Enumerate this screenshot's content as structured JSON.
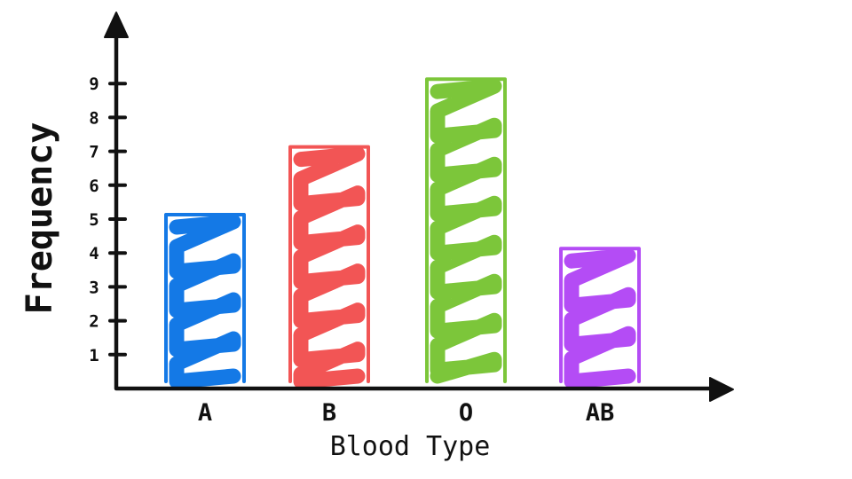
{
  "chart_data": {
    "type": "bar",
    "title": "",
    "xlabel": "Blood Type",
    "ylabel": "Frequency",
    "categories": [
      "A",
      "B",
      "O",
      "AB"
    ],
    "values": [
      5,
      7,
      9,
      4
    ],
    "colors": [
      "#1479e6",
      "#f25555",
      "#7cc63a",
      "#b44cf5"
    ],
    "yticks": [
      "1",
      "2",
      "3",
      "4",
      "5",
      "6",
      "7",
      "8",
      "9"
    ],
    "ylim": [
      0,
      10
    ],
    "grid": false,
    "legend": "none",
    "style": "hand-drawn scribble fill"
  }
}
